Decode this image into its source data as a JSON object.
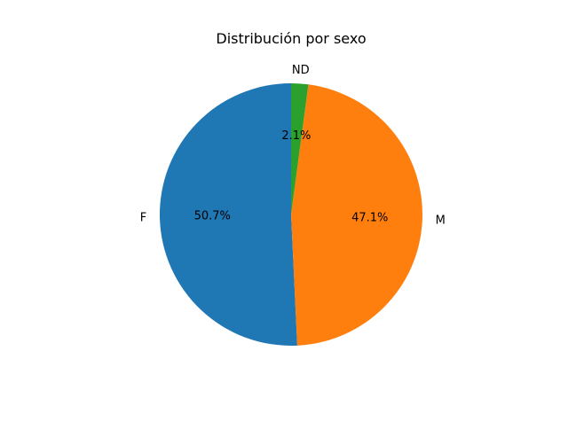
{
  "chart_data": {
    "type": "pie",
    "title": "Distribución por sexo",
    "categories": [
      "F",
      "M",
      "ND"
    ],
    "values": [
      50.7,
      47.1,
      2.1
    ],
    "percent_labels": [
      "50.7%",
      "47.1%",
      "2.1%"
    ],
    "colors": [
      "#1f77b4",
      "#ff7f0e",
      "#2ca02c"
    ],
    "start_angle_deg": 90,
    "direction": "counterclockwise"
  }
}
